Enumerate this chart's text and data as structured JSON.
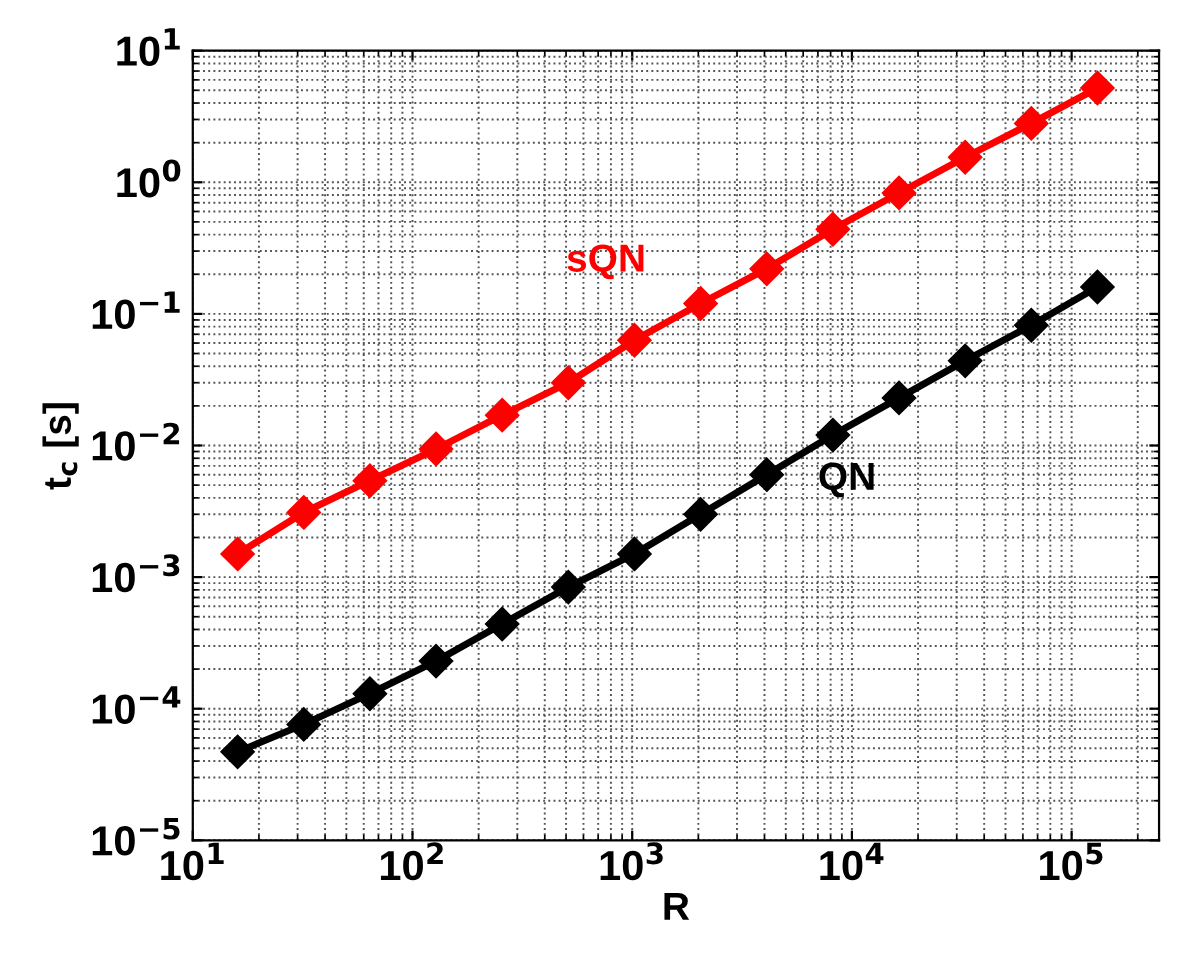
{
  "chart_data": {
    "type": "line",
    "xlabel": "R",
    "ylabel": "t$_{c}$ [s]",
    "x": [
      16,
      32,
      64,
      128,
      256,
      512,
      1024,
      2048,
      4096,
      8192,
      16384,
      32768,
      65536,
      131072
    ],
    "series": [
      {
        "name": "sQN",
        "color": "#ff0000",
        "values": [
          0.0015,
          0.0031,
          0.0054,
          0.0094,
          0.017,
          0.03,
          0.063,
          0.12,
          0.22,
          0.44,
          0.83,
          1.55,
          2.8,
          5.2
        ]
      },
      {
        "name": "QN",
        "color": "#000000",
        "values": [
          4.7e-05,
          7.6e-05,
          0.00013,
          0.00023,
          0.00044,
          0.00084,
          0.0015,
          0.003,
          0.006,
          0.012,
          0.023,
          0.044,
          0.082,
          0.16
        ]
      }
    ],
    "log": "xy",
    "grid": true,
    "marker": "diamond",
    "line_style": "solid",
    "legend": false,
    "xlim": [
      10,
      250000
    ],
    "ylim": [
      1e-05,
      10
    ],
    "xticks": [
      {
        "value": 10,
        "label": "10$^{1}$"
      },
      {
        "value": 100,
        "label": "10$^{2}$"
      },
      {
        "value": 1000,
        "label": "10$^{3}$"
      },
      {
        "value": 10000,
        "label": "10$^{4}$"
      },
      {
        "value": 100000,
        "label": "10$^{5}$"
      }
    ],
    "yticks": [
      {
        "value": 1e-05,
        "label": "10$^{−5}$"
      },
      {
        "value": 0.0001,
        "label": "10$^{−4}$"
      },
      {
        "value": 0.001,
        "label": "10$^{−3}$"
      },
      {
        "value": 0.01,
        "label": "10$^{−2}$"
      },
      {
        "value": 0.1,
        "label": "10$^{−1}$"
      },
      {
        "value": 1,
        "label": "10$^{0}$"
      },
      {
        "value": 10,
        "label": "10$^{1}$"
      }
    ]
  }
}
